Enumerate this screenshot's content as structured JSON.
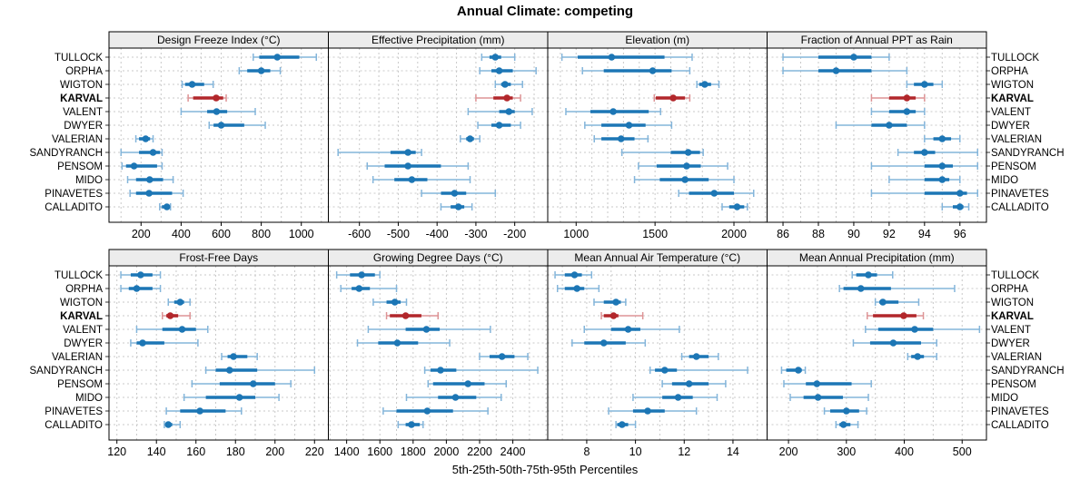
{
  "title": "Annual Climate: competing",
  "caption": "5th-25th-50th-75th-95th Percentiles",
  "highlight_site": "KARVAL",
  "colors": {
    "series_blue": "#1c76b5",
    "series_blue_light": "#84b5da",
    "highlight_red": "#b2272b",
    "highlight_red_light": "#dd9496",
    "strip_background": "#ececec",
    "panel_border": "#000000",
    "gridline": "#c9c9c9",
    "text": "#000000"
  },
  "sites": [
    "TULLOCK",
    "ORPHA",
    "WIGTON",
    "KARVAL",
    "VALENT",
    "DWYER",
    "VALERIAN",
    "SANDYRANCH",
    "PENSOM",
    "MIDO",
    "PINAVETES",
    "CALLADITO"
  ],
  "chart_data": {
    "type": "dotplot-percentiles",
    "percentile_levels": [
      5,
      25,
      50,
      75,
      95
    ],
    "legend_position": "none",
    "grid": "dashed",
    "panels": [
      {
        "title": "Design Freeze Index (°C)",
        "row": 0,
        "col": 0,
        "xlim": [
          40,
          1135
        ],
        "ticks": [
          200,
          400,
          600,
          800,
          1000
        ],
        "minor_step": 100,
        "values": {
          "TULLOCK": [
            760,
            790,
            880,
            990,
            1075
          ],
          "ORPHA": [
            690,
            730,
            800,
            845,
            895
          ],
          "WIGTON": [
            405,
            420,
            455,
            515,
            560
          ],
          "KARVAL": [
            435,
            460,
            575,
            610,
            625
          ],
          "VALENT": [
            400,
            530,
            577,
            630,
            770
          ],
          "DWYER": [
            540,
            562,
            600,
            715,
            820
          ],
          "VALERIAN": [
            174,
            190,
            223,
            245,
            260
          ],
          "SANDYRANCH": [
            100,
            190,
            260,
            295,
            305
          ],
          "PENSOM": [
            105,
            125,
            165,
            280,
            305
          ],
          "MIDO": [
            133,
            175,
            243,
            310,
            360
          ],
          "PINAVETES": [
            145,
            175,
            240,
            355,
            410
          ],
          "CALLADITO": [
            293,
            304,
            329,
            341,
            347
          ]
        }
      },
      {
        "title": "Effective Precipitation (mm)",
        "row": 0,
        "col": 1,
        "xlim": [
          -680,
          -115
        ],
        "ticks": [
          -600,
          -500,
          -400,
          -300,
          -200
        ],
        "minor_step": 50,
        "values": {
          "TULLOCK": [
            -285,
            -265,
            -250,
            -235,
            -200
          ],
          "ORPHA": [
            -290,
            -260,
            -240,
            -205,
            -145
          ],
          "WIGTON": [
            -250,
            -235,
            -225,
            -210,
            -180
          ],
          "KARVAL": [
            -300,
            -255,
            -220,
            -205,
            -185
          ],
          "VALENT": [
            -320,
            -240,
            -215,
            -200,
            -155
          ],
          "DWYER": [
            -295,
            -260,
            -240,
            -210,
            -185
          ],
          "VALERIAN": [
            -340,
            -325,
            -315,
            -305,
            -290
          ],
          "SANDYRANCH": [
            -655,
            -520,
            -475,
            -455,
            -440
          ],
          "PENSOM": [
            -580,
            -535,
            -475,
            -390,
            -320
          ],
          "MIDO": [
            -565,
            -510,
            -465,
            -425,
            -315
          ],
          "PINAVETES": [
            -440,
            -390,
            -355,
            -325,
            -250
          ],
          "CALLADITO": [
            -390,
            -365,
            -345,
            -330,
            -310
          ]
        }
      },
      {
        "title": "Elevation (m)",
        "row": 0,
        "col": 2,
        "xlim": [
          820,
          2210
        ],
        "ticks": [
          1000,
          1500,
          2000
        ],
        "minor_step": 100,
        "values": {
          "TULLOCK": [
            910,
            1010,
            1225,
            1560,
            1735
          ],
          "ORPHA": [
            1040,
            1175,
            1485,
            1605,
            1720
          ],
          "WIGTON": [
            1765,
            1780,
            1815,
            1855,
            1905
          ],
          "KARVAL": [
            1495,
            1505,
            1615,
            1690,
            1720
          ],
          "VALENT": [
            935,
            1090,
            1235,
            1460,
            1535
          ],
          "DWYER": [
            1055,
            1160,
            1335,
            1440,
            1605
          ],
          "VALERIAN": [
            1115,
            1160,
            1285,
            1370,
            1455
          ],
          "SANDYRANCH": [
            1290,
            1600,
            1710,
            1785,
            1805
          ],
          "PENSOM": [
            1395,
            1510,
            1700,
            1790,
            1960
          ],
          "MIDO": [
            1370,
            1530,
            1690,
            1840,
            2000
          ],
          "PINAVETES": [
            1650,
            1715,
            1875,
            2000,
            2125
          ],
          "CALLADITO": [
            1925,
            1970,
            2020,
            2065,
            2085
          ]
        }
      },
      {
        "title": "Fraction of Annual PPT as Rain",
        "row": 0,
        "col": 3,
        "xlim": [
          85.1,
          97.5
        ],
        "ticks": [
          86,
          88,
          90,
          92,
          94,
          96
        ],
        "minor_step": 1,
        "values": {
          "TULLOCK": [
            86,
            88,
            90,
            91,
            92
          ],
          "ORPHA": [
            86,
            88,
            89,
            91,
            93
          ],
          "WIGTON": [
            93,
            93.4,
            94,
            94.5,
            95
          ],
          "KARVAL": [
            91,
            92,
            93,
            93.5,
            94
          ],
          "VALENT": [
            91,
            92,
            93,
            93.5,
            94
          ],
          "DWYER": [
            89,
            91,
            92,
            93,
            94
          ],
          "VALERIAN": [
            94,
            94.5,
            95,
            95.5,
            96
          ],
          "SANDYRANCH": [
            92.5,
            93.4,
            94,
            94.6,
            97
          ],
          "PENSOM": [
            91,
            94,
            95,
            95.6,
            97
          ],
          "MIDO": [
            92,
            94,
            95,
            95.4,
            96
          ],
          "PINAVETES": [
            91,
            94,
            96,
            96.4,
            97
          ],
          "CALLADITO": [
            95,
            95.6,
            96,
            96.2,
            96.5
          ]
        }
      },
      {
        "title": "Frost-Free Days",
        "row": 1,
        "col": 0,
        "xlim": [
          116,
          227
        ],
        "ticks": [
          120,
          140,
          160,
          180,
          200,
          220
        ],
        "minor_step": 10,
        "values": {
          "TULLOCK": [
            122,
            127,
            132,
            138,
            142
          ],
          "ORPHA": [
            122,
            126,
            130,
            138,
            142
          ],
          "WIGTON": [
            146,
            149,
            152,
            154,
            157
          ],
          "KARVAL": [
            143,
            145,
            147,
            151,
            157
          ],
          "VALENT": [
            130,
            143,
            153,
            160,
            166
          ],
          "DWYER": [
            127,
            130,
            133,
            144,
            161
          ],
          "VALERIAN": [
            173,
            176,
            179,
            186,
            191
          ],
          "SANDYRANCH": [
            165,
            170,
            177,
            191,
            220
          ],
          "PENSOM": [
            158,
            172,
            189,
            200,
            208
          ],
          "MIDO": [
            154,
            165,
            182,
            190,
            202
          ],
          "PINAVETES": [
            145,
            152,
            162,
            175,
            183
          ],
          "CALLADITO": [
            144,
            145,
            146,
            148,
            152
          ]
        }
      },
      {
        "title": "Growing Degree Days (°C)",
        "row": 1,
        "col": 1,
        "xlim": [
          1290,
          2610
        ],
        "ticks": [
          1400,
          1600,
          1800,
          2000,
          2200,
          2400
        ],
        "minor_step": 100,
        "values": {
          "TULLOCK": [
            1340,
            1420,
            1490,
            1570,
            1600
          ],
          "ORPHA": [
            1365,
            1430,
            1475,
            1540,
            1700
          ],
          "WIGTON": [
            1560,
            1640,
            1690,
            1725,
            1760
          ],
          "KARVAL": [
            1640,
            1660,
            1755,
            1850,
            1950
          ],
          "VALENT": [
            1530,
            1755,
            1880,
            1960,
            2265
          ],
          "DWYER": [
            1465,
            1590,
            1705,
            1830,
            2020
          ],
          "VALERIAN": [
            2200,
            2260,
            2335,
            2410,
            2490
          ],
          "SANDYRANCH": [
            1870,
            1905,
            1965,
            2060,
            2550
          ],
          "PENSOM": [
            1890,
            1920,
            2130,
            2230,
            2360
          ],
          "MIDO": [
            1760,
            1950,
            2055,
            2180,
            2330
          ],
          "PINAVETES": [
            1620,
            1700,
            1885,
            2040,
            2250
          ],
          "CALLADITO": [
            1710,
            1755,
            1790,
            1840,
            1860
          ]
        }
      },
      {
        "title": "Mean Annual Air Temperature (°C)",
        "row": 1,
        "col": 2,
        "xlim": [
          6.4,
          15.4
        ],
        "ticks": [
          8,
          10,
          12,
          14
        ],
        "minor_step": 1,
        "values": {
          "TULLOCK": [
            6.7,
            7.1,
            7.5,
            7.8,
            8.2
          ],
          "ORPHA": [
            6.8,
            7.1,
            7.6,
            7.9,
            8.5
          ],
          "WIGTON": [
            8.3,
            8.7,
            9.2,
            9.4,
            9.6
          ],
          "KARVAL": [
            8.6,
            8.7,
            9.1,
            9.3,
            10.3
          ],
          "VALENT": [
            7.9,
            9.0,
            9.7,
            10.2,
            11.8
          ],
          "DWYER": [
            7.4,
            7.9,
            8.7,
            9.6,
            10.4
          ],
          "VALERIAN": [
            11.9,
            12.2,
            12.5,
            13.0,
            13.4
          ],
          "SANDYRANCH": [
            10.6,
            10.8,
            11.2,
            11.7,
            14.6
          ],
          "PENSOM": [
            11.1,
            11.5,
            12.2,
            13.0,
            13.7
          ],
          "MIDO": [
            9.9,
            11.1,
            11.75,
            12.35,
            13.35
          ],
          "PINAVETES": [
            8.9,
            9.9,
            10.5,
            11.2,
            12.5
          ],
          "CALLADITO": [
            9.2,
            9.25,
            9.45,
            9.7,
            10.0
          ]
        }
      },
      {
        "title": "Mean Annual Precipitation (mm)",
        "row": 1,
        "col": 3,
        "xlim": [
          163,
          542
        ],
        "ticks": [
          200,
          300,
          400,
          500
        ],
        "minor_step": 50,
        "values": {
          "TULLOCK": [
            310,
            317,
            338,
            353,
            380
          ],
          "ORPHA": [
            288,
            295,
            325,
            377,
            487
          ],
          "WIGTON": [
            350,
            357,
            363,
            390,
            425
          ],
          "KARVAL": [
            336,
            346,
            399,
            421,
            433
          ],
          "VALENT": [
            333,
            355,
            418,
            450,
            530
          ],
          "DWYER": [
            312,
            341,
            381,
            429,
            456
          ],
          "VALERIAN": [
            406,
            412,
            423,
            434,
            456
          ],
          "SANDYRANCH": [
            188,
            196,
            217,
            223,
            229
          ],
          "PENSOM": [
            192,
            230,
            249,
            309,
            343
          ],
          "MIDO": [
            203,
            226,
            251,
            294,
            338
          ],
          "PINAVETES": [
            262,
            272,
            300,
            322,
            335
          ],
          "CALLADITO": [
            282,
            288,
            295,
            307,
            320
          ]
        }
      }
    ]
  }
}
